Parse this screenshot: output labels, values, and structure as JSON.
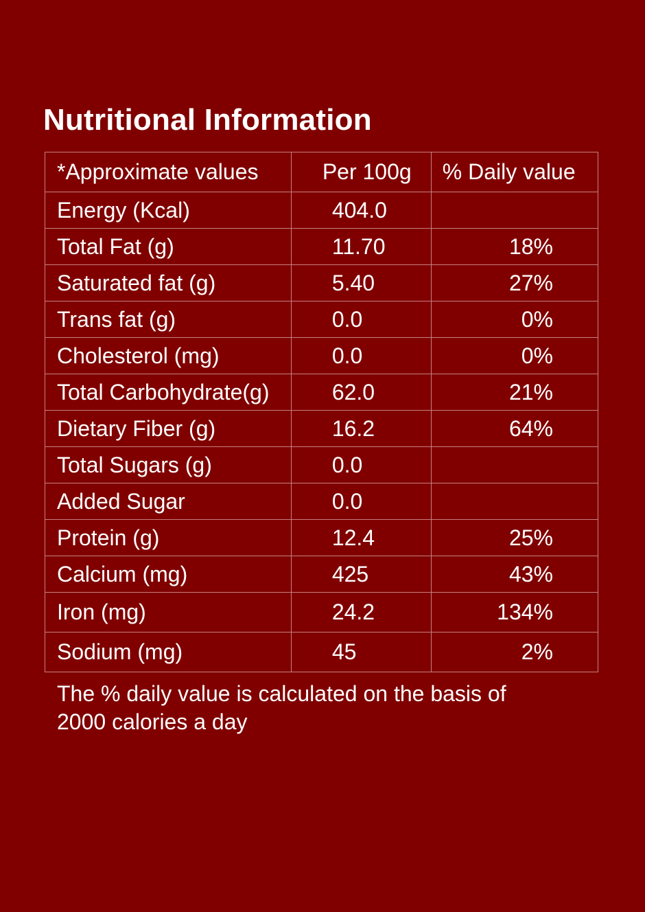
{
  "title": "Nutritional Information",
  "table": {
    "header": {
      "name": "*Approximate values",
      "per": "Per 100g",
      "dv": "% Daily value"
    },
    "rows": [
      {
        "name": "Energy (Kcal)",
        "per": "404.0",
        "dv": ""
      },
      {
        "name": "Total Fat (g)",
        "per": "11.70",
        "dv": "18%"
      },
      {
        "name": "Saturated fat (g)",
        "per": "5.40",
        "dv": "27%"
      },
      {
        "name": "Trans fat (g)",
        "per": "0.0",
        "dv": "0%"
      },
      {
        "name": "Cholesterol (mg)",
        "per": "0.0",
        "dv": "0%"
      },
      {
        "name": "Total Carbohydrate(g)",
        "per": "62.0",
        "dv": "21%"
      },
      {
        "name": "Dietary Fiber (g)",
        "per": "16.2",
        "dv": "64%"
      },
      {
        "name": "Total Sugars (g)",
        "per": "0.0",
        "dv": ""
      },
      {
        "name": "Added Sugar",
        "per": "0.0",
        "dv": ""
      },
      {
        "name": "Protein (g)",
        "per": "12.4",
        "dv": "25%"
      },
      {
        "name": "Calcium (mg)",
        "per": "425",
        "dv": "43%"
      },
      {
        "name": "Iron (mg)",
        "per": "24.2",
        "dv": "134%"
      },
      {
        "name": "Sodium (mg)",
        "per": "45",
        "dv": "2%"
      }
    ]
  },
  "footnote": {
    "line1": "The % daily value is calculated on the basis of",
    "line2": "2000 calories a day"
  },
  "colors": {
    "background": "#800000",
    "text": "#ffffff",
    "border": "#c98080"
  }
}
